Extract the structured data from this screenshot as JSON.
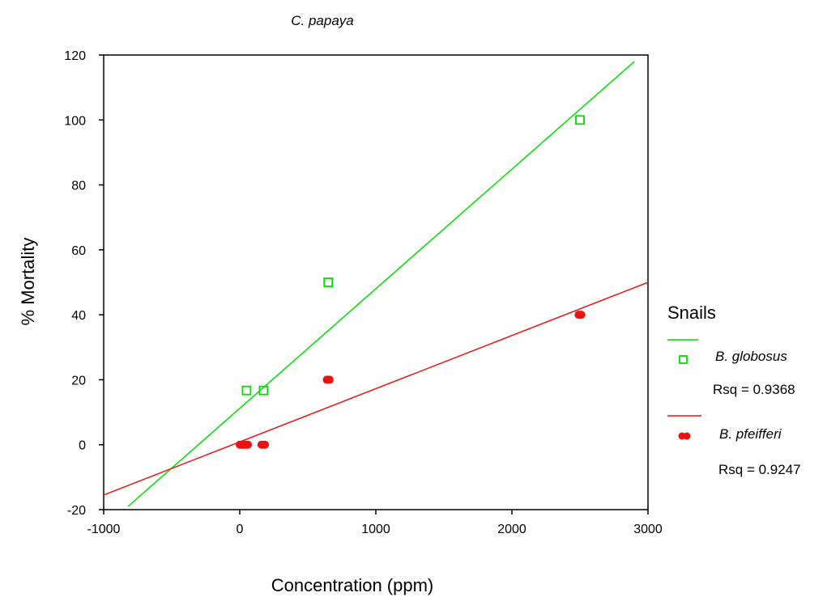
{
  "chart_data": {
    "type": "scatter",
    "title": "C. papaya",
    "xlabel": "Concentration (ppm)",
    "ylabel": "% Mortality",
    "xlim": [
      -1000,
      3000
    ],
    "ylim": [
      -20,
      120
    ],
    "xticks": [
      -1000,
      0,
      1000,
      2000,
      3000
    ],
    "yticks": [
      -20,
      0,
      20,
      40,
      60,
      80,
      100,
      120
    ],
    "grid": false,
    "legend": {
      "title": "Snails",
      "placement": "right"
    },
    "series": [
      {
        "name": "B. globosus",
        "color": "#00dd00",
        "marker": "open-square",
        "rsq_label": "Rsq = 0.9368",
        "points": [
          {
            "x": 50,
            "y": 16.7
          },
          {
            "x": 175,
            "y": 16.7
          },
          {
            "x": 650,
            "y": 50
          },
          {
            "x": 2500,
            "y": 100
          }
        ],
        "fit_line": {
          "x": [
            -820,
            2900
          ],
          "y": [
            -19,
            118
          ]
        }
      },
      {
        "name": "B. pfeifferi",
        "color": "#ee1111",
        "marker": "filled-circle",
        "rsq_label": "Rsq = 0.9247",
        "points": [
          {
            "x": 0,
            "y": 0
          },
          {
            "x": 10,
            "y": 0
          },
          {
            "x": 20,
            "y": 0
          },
          {
            "x": 30,
            "y": 0
          },
          {
            "x": 40,
            "y": 0
          },
          {
            "x": 50,
            "y": 0
          },
          {
            "x": 60,
            "y": 0
          },
          {
            "x": 160,
            "y": 0
          },
          {
            "x": 175,
            "y": 0
          },
          {
            "x": 185,
            "y": 0
          },
          {
            "x": 640,
            "y": 20
          },
          {
            "x": 650,
            "y": 20
          },
          {
            "x": 660,
            "y": 20
          },
          {
            "x": 2490,
            "y": 40
          },
          {
            "x": 2500,
            "y": 40
          },
          {
            "x": 2510,
            "y": 40
          }
        ],
        "fit_line": {
          "x": [
            -1000,
            3000
          ],
          "y": [
            -15.5,
            50
          ]
        }
      }
    ]
  }
}
